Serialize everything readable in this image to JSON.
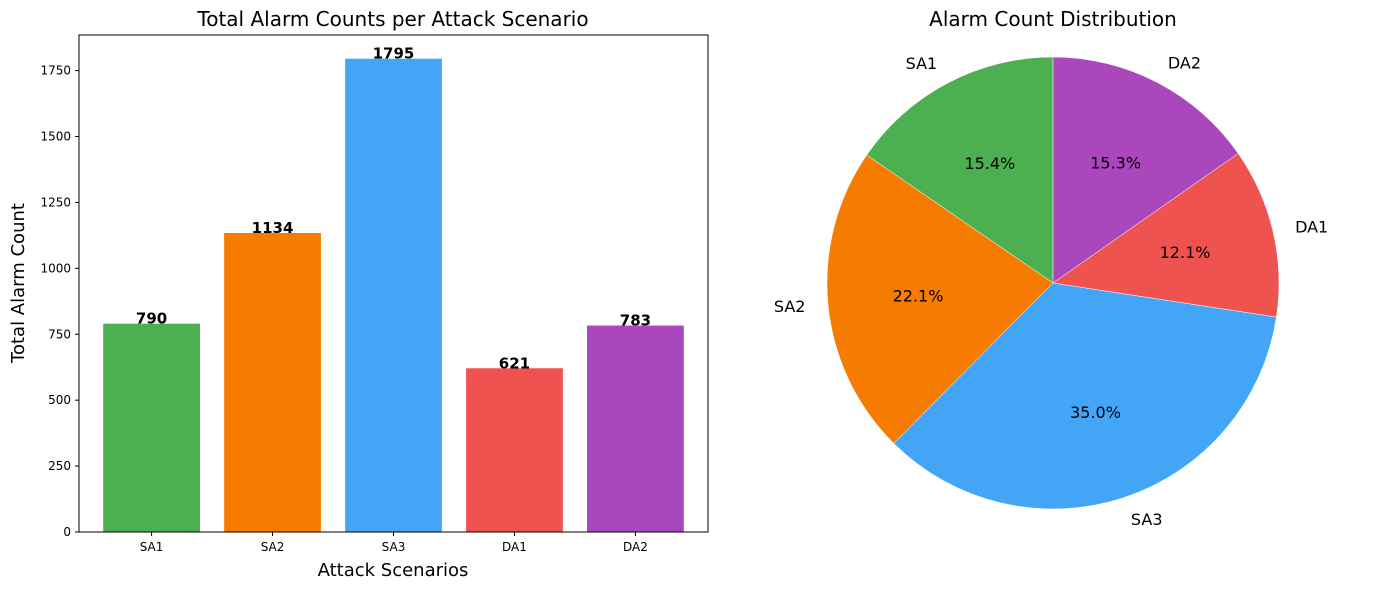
{
  "chart_data": [
    {
      "type": "bar",
      "title": "Total Alarm Counts per Attack Scenario",
      "xlabel": "Attack Scenarios",
      "ylabel": "Total Alarm Count",
      "categories": [
        "SA1",
        "SA2",
        "SA3",
        "DA1",
        "DA2"
      ],
      "values": [
        790,
        1134,
        1795,
        621,
        783
      ],
      "data_labels": [
        "790",
        "1134",
        "1795",
        "621",
        "783"
      ],
      "colors": [
        "#4caf50",
        "#f57c00",
        "#42a5f5",
        "#ef5350",
        "#ab47bc"
      ],
      "ylim": [
        0,
        1885
      ],
      "yticks": [
        0,
        250,
        500,
        750,
        1000,
        1250,
        1500,
        1750
      ],
      "ytick_labels": [
        "0",
        "250",
        "500",
        "750",
        "1000",
        "1250",
        "1500",
        "1750"
      ],
      "grid": false,
      "legend": "none"
    },
    {
      "type": "pie",
      "title": "Alarm Count Distribution",
      "labels": [
        "SA1",
        "SA2",
        "SA3",
        "DA1",
        "DA2"
      ],
      "values": [
        790,
        1134,
        1795,
        621,
        783
      ],
      "percent_labels": [
        "15.4%",
        "22.1%",
        "35.0%",
        "12.1%",
        "15.3%"
      ],
      "colors": [
        "#4caf50",
        "#f57c00",
        "#42a5f5",
        "#ef5350",
        "#ab47bc"
      ],
      "start_angle": 90,
      "direction": "counterclockwise",
      "legend": "none"
    }
  ]
}
